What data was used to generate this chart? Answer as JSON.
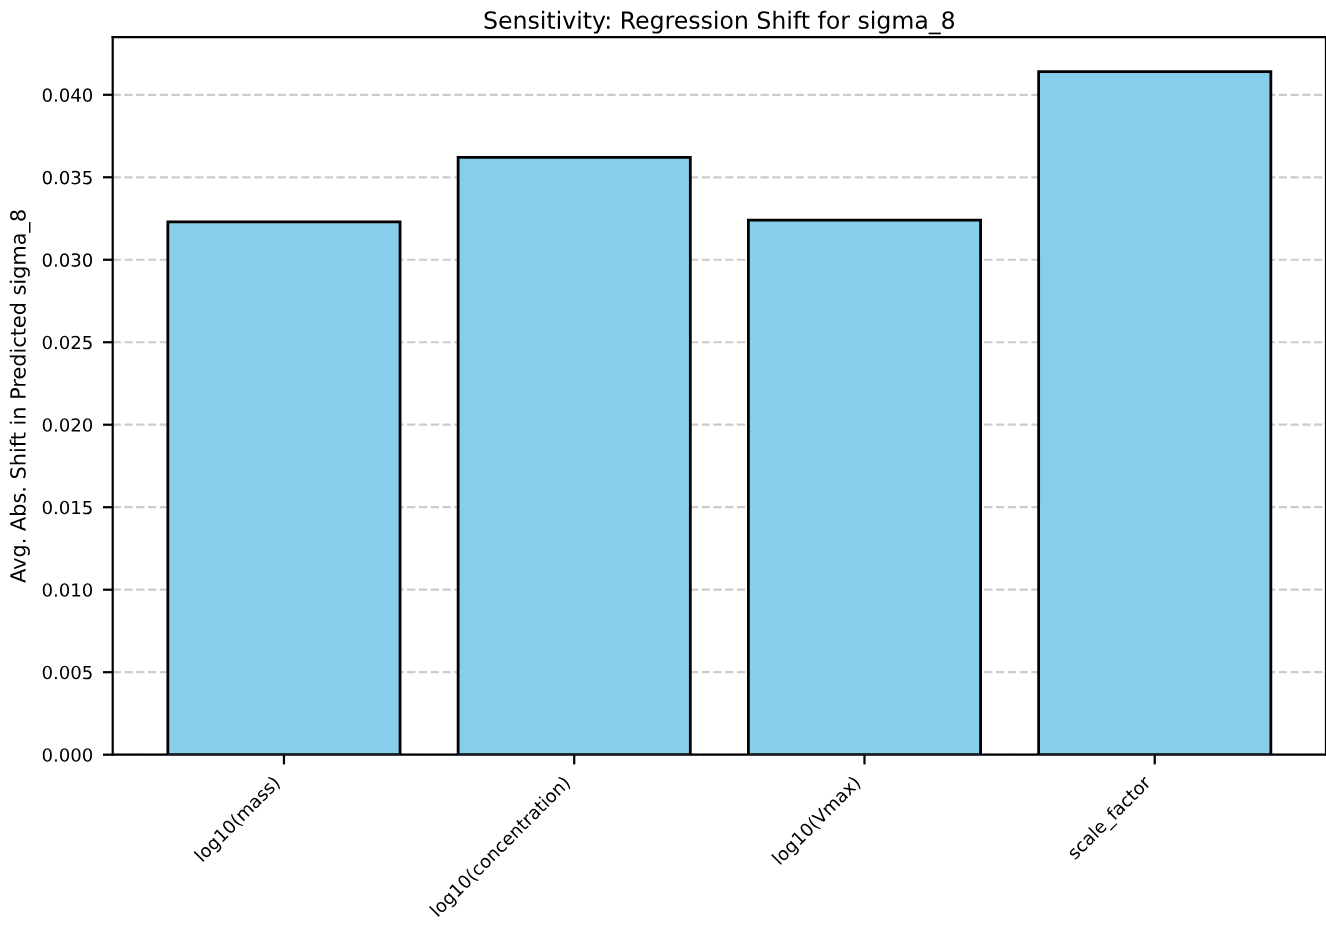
{
  "chart_data": {
    "type": "bar",
    "title": "Sensitivity: Regression Shift for sigma_8",
    "ylabel": "Avg. Abs. Shift in Predicted sigma_8",
    "categories": [
      "log10(mass)",
      "log10(concentration)",
      "log10(Vmax)",
      "scale_factor"
    ],
    "values": [
      0.0323,
      0.0362,
      0.0324,
      0.0414
    ],
    "color": "#87ceeb",
    "ylim": [
      0,
      0.0435
    ],
    "yticks": [
      {
        "value": 0,
        "label": "0.000"
      },
      {
        "value": 0.005,
        "label": "0.005"
      },
      {
        "value": 0.01,
        "label": "0.010"
      },
      {
        "value": 0.015,
        "label": "0.015"
      },
      {
        "value": 0.02,
        "label": "0.020"
      },
      {
        "value": 0.025,
        "label": "0.025"
      },
      {
        "value": 0.03,
        "label": "0.030"
      },
      {
        "value": 0.035,
        "label": "0.035"
      },
      {
        "value": 0.04,
        "label": "0.040"
      }
    ],
    "grid": "y"
  }
}
